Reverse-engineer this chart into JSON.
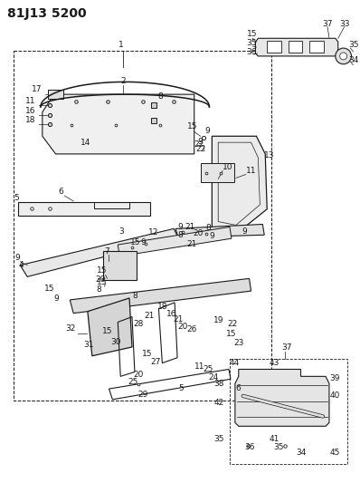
{
  "title": "81J13 5200",
  "bg_color": "#ffffff",
  "line_color": "#1a1a1a",
  "title_fontsize": 10,
  "label_fontsize": 6.5
}
